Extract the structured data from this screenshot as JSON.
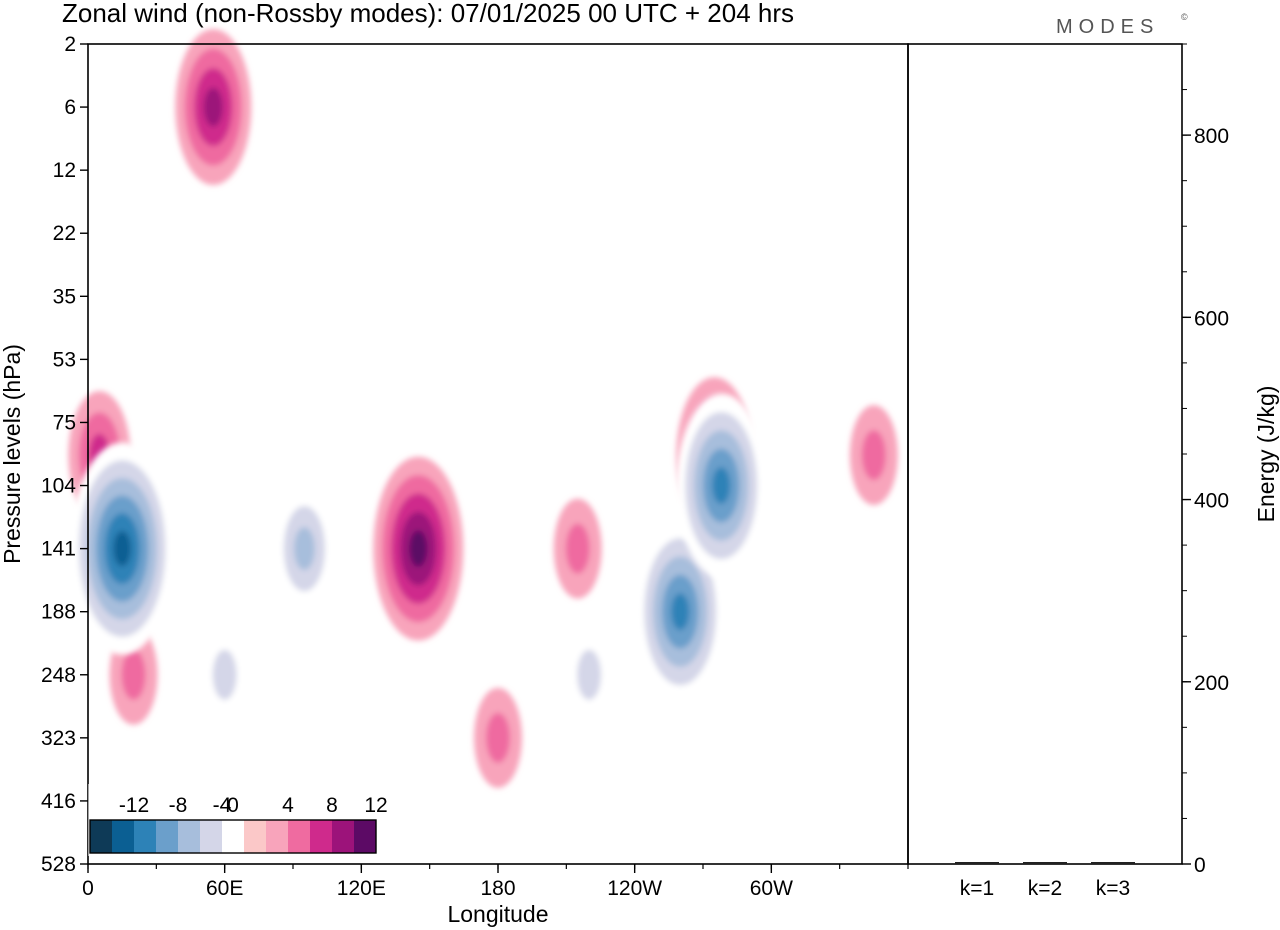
{
  "header": {
    "title": "Zonal wind (non-Rossby modes):  07/01/2025  00 UTC  + 204 hrs",
    "logo": "MODES",
    "logo_mark": "©"
  },
  "chart_data": [
    {
      "type": "heatmap",
      "title": "Zonal wind (non-Rossby modes):  07/01/2025  00 UTC  + 204 hrs",
      "xlabel": "Longitude",
      "ylabel": "Pressure levels (hPa)",
      "x_ticks": [
        "0",
        "60E",
        "120E",
        "180",
        "120W",
        "60W"
      ],
      "x_tick_degrees": [
        0,
        60,
        120,
        180,
        240,
        300
      ],
      "xlim": [
        0,
        360
      ],
      "y_ticks": [
        "2",
        "6",
        "12",
        "22",
        "35",
        "53",
        "75",
        "104",
        "141",
        "188",
        "248",
        "323",
        "416",
        "528"
      ],
      "colorbar": {
        "labels": [
          "-12",
          "-8",
          "-4",
          "0",
          "4",
          "8",
          "12"
        ],
        "label_values": [
          -12,
          -8,
          -4,
          0,
          4,
          8,
          12
        ],
        "bins": [
          -14,
          -12,
          -10,
          -8,
          -6,
          -4,
          -2,
          2,
          4,
          6,
          8,
          10,
          12,
          14
        ],
        "colors": [
          "#0e3a57",
          "#0b5f93",
          "#2d82b7",
          "#6b9fcb",
          "#a7bedc",
          "#d4d6e8",
          "#ffffff",
          "#fbc8c8",
          "#f8a4bb",
          "#ef6ba0",
          "#cf2a8c",
          "#9c137a",
          "#5c0a65"
        ]
      },
      "features": [
        {
          "lon": 15,
          "level": 141,
          "value": -13
        },
        {
          "lon": 55,
          "level": 6,
          "value": 9
        },
        {
          "lon": 5,
          "level": 90,
          "value": 8
        },
        {
          "lon": 95,
          "level": 141,
          "value": -7
        },
        {
          "lon": 145,
          "level": 141,
          "value": 12
        },
        {
          "lon": 180,
          "level": 323,
          "value": 5
        },
        {
          "lon": 215,
          "level": 141,
          "value": 6
        },
        {
          "lon": 260,
          "level": 188,
          "value": -11
        },
        {
          "lon": 278,
          "level": 104,
          "value": -12
        },
        {
          "lon": 275,
          "level": 90,
          "value": 9
        },
        {
          "lon": 20,
          "level": 248,
          "value": 6
        },
        {
          "lon": 60,
          "level": 248,
          "value": -6
        },
        {
          "lon": 220,
          "level": 248,
          "value": -6
        },
        {
          "lon": 345,
          "level": 90,
          "value": 5
        }
      ]
    },
    {
      "type": "bar",
      "ylabel": "Energy (J/kg)",
      "categories": [
        "k=1",
        "k=2",
        "k=3"
      ],
      "values": [
        1,
        1,
        1
      ],
      "ylim": [
        0,
        900
      ],
      "y_ticks": [
        0,
        200,
        400,
        600,
        800
      ]
    }
  ]
}
